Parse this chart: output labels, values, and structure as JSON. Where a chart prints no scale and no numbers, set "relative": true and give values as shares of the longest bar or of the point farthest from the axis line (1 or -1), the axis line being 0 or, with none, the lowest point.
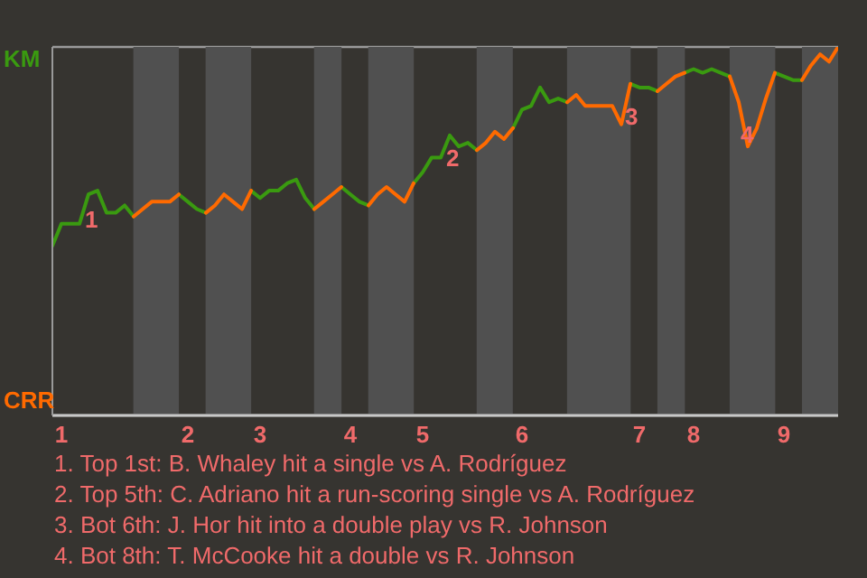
{
  "chart_data": {
    "type": "line",
    "categories": [
      null,
      "1",
      null,
      null,
      null,
      null,
      null,
      null,
      null,
      null,
      null,
      null,
      null,
      null,
      null,
      "2",
      null,
      null,
      null,
      null,
      null,
      null,
      null,
      "3",
      null,
      null,
      null,
      null,
      null,
      null,
      null,
      null,
      null,
      "4",
      null,
      null,
      null,
      null,
      null,
      null,
      null,
      "5",
      null,
      null,
      null,
      null,
      null,
      null,
      null,
      null,
      null,
      null,
      "6",
      null,
      null,
      null,
      null,
      null,
      null,
      null,
      null,
      null,
      null,
      null,
      null,
      "7",
      null,
      null,
      null,
      null,
      null,
      "8",
      null,
      null,
      null,
      null,
      null,
      null,
      null,
      null,
      null,
      "9",
      null,
      null,
      null,
      null,
      null,
      null
    ],
    "relative": true,
    "series": [
      {
        "name": "KM",
        "color": "#3a9a10",
        "values": [
          0.46,
          0.52,
          0.52,
          0.52,
          0.6,
          0.61,
          0.55,
          0.55,
          0.57,
          0.54,
          null,
          null,
          null,
          null,
          0.6,
          0.58,
          0.56,
          0.55,
          null,
          null,
          null,
          null,
          0.61,
          0.59,
          0.61,
          0.61,
          0.63,
          0.64,
          0.59,
          0.56,
          null,
          null,
          0.62,
          0.6,
          0.58,
          0.57,
          null,
          null,
          null,
          null,
          0.63,
          0.66,
          0.7,
          0.7,
          0.76,
          0.73,
          0.74,
          0.72,
          null,
          null,
          null,
          0.78,
          0.83,
          0.84,
          0.89,
          0.85,
          0.86,
          0.85,
          null,
          null,
          null,
          null,
          null,
          null,
          0.9,
          0.89,
          0.89,
          0.88,
          null,
          null,
          0.93,
          0.94,
          0.93,
          0.94,
          0.93,
          0.92,
          null,
          null,
          null,
          null,
          0.93,
          0.92,
          0.91,
          0.91,
          null,
          null,
          null,
          null
        ]
      },
      {
        "name": "CRR",
        "color": "#ff6a00",
        "values": [
          null,
          null,
          null,
          null,
          null,
          null,
          null,
          null,
          null,
          0.54,
          0.56,
          0.58,
          0.58,
          0.58,
          0.6,
          null,
          null,
          0.55,
          0.57,
          0.6,
          0.58,
          0.56,
          0.61,
          null,
          null,
          null,
          null,
          null,
          null,
          0.56,
          0.58,
          0.6,
          0.62,
          null,
          null,
          0.57,
          0.6,
          0.62,
          0.6,
          0.58,
          0.63,
          null,
          null,
          null,
          null,
          null,
          null,
          0.72,
          0.74,
          0.77,
          0.75,
          0.78,
          null,
          null,
          null,
          null,
          null,
          0.85,
          0.87,
          0.84,
          0.84,
          0.84,
          0.84,
          0.79,
          0.9,
          null,
          null,
          0.88,
          0.9,
          0.92,
          0.93,
          null,
          null,
          null,
          null,
          0.92,
          0.85,
          0.73,
          0.78,
          0.86,
          0.93,
          null,
          null,
          0.91,
          0.95,
          0.98,
          0.96,
          1.0
        ]
      }
    ],
    "grid": "y",
    "marker": "none",
    "line_style": "solid",
    "annotations": [
      "1",
      "2",
      "3",
      "4",
      "1. Top 1st: B. Whaley hit a single vs A. Rodríguez",
      "2. Top 5th: C. Adriano hit a run-scoring single vs A. Rodríguez",
      "3. Bot 6th: J. Hor hit into a double play vs R. Johnson",
      "4. Bot 8th: T. McCooke hit a double vs R. Johnson"
    ]
  }
}
